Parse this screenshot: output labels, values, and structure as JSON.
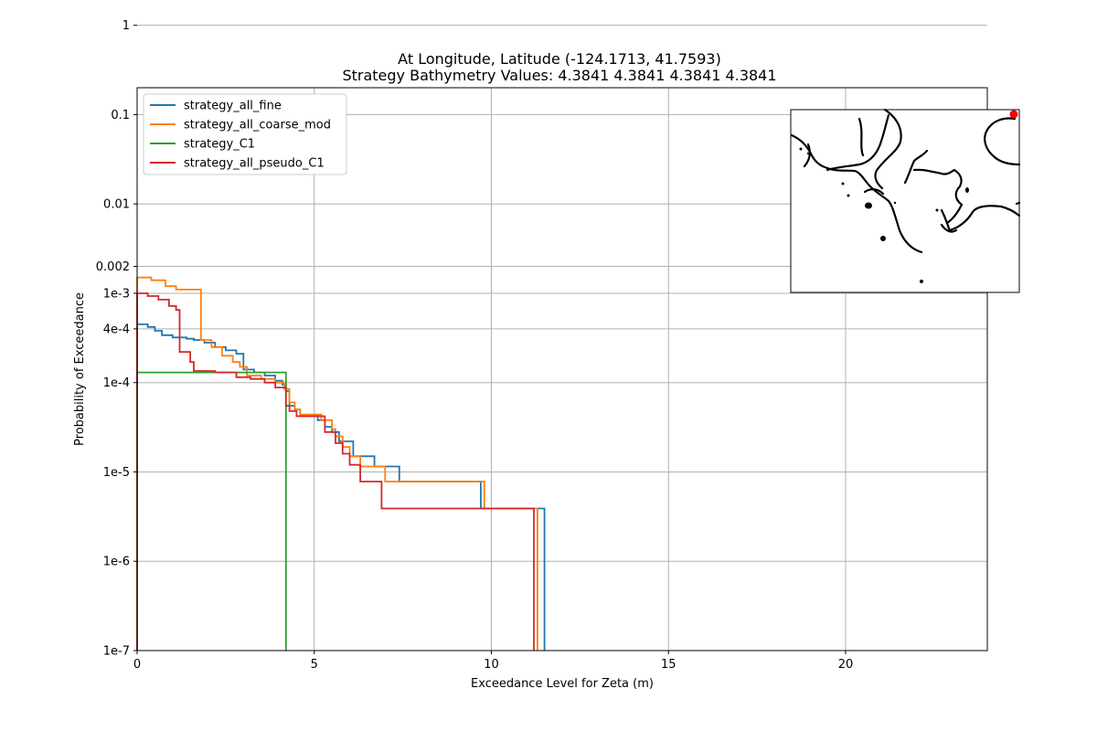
{
  "chart_data": {
    "type": "line",
    "title_lines": [
      "At Longitude, Latitude (-124.1713,  41.7593)",
      "Strategy Bathymetry Values:    4.3841    4.3841    4.3841    4.3841"
    ],
    "xlabel": "Exceedance Level for Zeta (m)",
    "ylabel": "Probability of Exceedance",
    "xlim": [
      0,
      24
    ],
    "ylim": [
      1e-07,
      0.2
    ],
    "yscale": "log",
    "grid": true,
    "legend_position": "top-left",
    "x_ticks": [
      {
        "value": 0,
        "label": "0"
      },
      {
        "value": 5,
        "label": "5"
      },
      {
        "value": 10,
        "label": "10"
      },
      {
        "value": 15,
        "label": "15"
      },
      {
        "value": 20,
        "label": "20"
      }
    ],
    "y_ticks": [
      {
        "value": 1,
        "label": "1"
      },
      {
        "value": 0.1,
        "label": "0.1"
      },
      {
        "value": 0.01,
        "label": "0.01"
      },
      {
        "value": 0.002,
        "label": "0.002"
      },
      {
        "value": 0.001,
        "label": "1e-3"
      },
      {
        "value": 0.0004,
        "label": "4e-4"
      },
      {
        "value": 0.0001,
        "label": "1e-4"
      },
      {
        "value": 1e-05,
        "label": "1e-5"
      },
      {
        "value": 1e-06,
        "label": "1e-6"
      },
      {
        "value": 1e-07,
        "label": "1e-7"
      }
    ],
    "series": [
      {
        "name": "strategy_all_fine",
        "color": "#1f77b4",
        "x": [
          0.0,
          0.3,
          0.5,
          0.7,
          1.0,
          1.4,
          1.6,
          1.9,
          2.2,
          2.5,
          2.8,
          3.0,
          3.3,
          3.6,
          3.9,
          4.1,
          4.2,
          4.3,
          4.45,
          4.6,
          5.1,
          5.3,
          5.5,
          5.7,
          6.1,
          6.7,
          7.4,
          9.7,
          11.5
        ],
        "y": [
          0.00045,
          0.00042,
          0.00038,
          0.00034,
          0.00032,
          0.00031,
          0.0003,
          0.00028,
          0.00025,
          0.00023,
          0.00021,
          0.00014,
          0.00013,
          0.00012,
          0.000105,
          9.5e-05,
          8e-05,
          5.5e-05,
          5e-05,
          4.2e-05,
          3.8e-05,
          3.2e-05,
          2.8e-05,
          2.2e-05,
          1.5e-05,
          1.15e-05,
          7.8e-06,
          3.9e-06,
          1e-07
        ]
      },
      {
        "name": "strategy_all_coarse_mod",
        "color": "#ff7f0e",
        "x": [
          0.0,
          0.4,
          0.8,
          1.1,
          1.5,
          1.8,
          2.1,
          2.4,
          2.7,
          2.9,
          3.1,
          3.5,
          3.9,
          4.15,
          4.3,
          4.45,
          4.6,
          5.2,
          5.5,
          5.6,
          5.8,
          6.0,
          6.3,
          7.0,
          9.8,
          11.3
        ],
        "y": [
          0.0015,
          0.0014,
          0.0012,
          0.0011,
          0.0011,
          0.0003,
          0.00025,
          0.0002,
          0.00017,
          0.00015,
          0.00012,
          0.00011,
          0.0001,
          8.5e-05,
          6e-05,
          5e-05,
          4.4e-05,
          3.8e-05,
          3e-05,
          2.5e-05,
          1.9e-05,
          1.5e-05,
          1.15e-05,
          7.8e-06,
          3.9e-06,
          1e-07
        ]
      },
      {
        "name": "strategy_C1",
        "color": "#2ca02c",
        "x": [
          0.0,
          4.2
        ],
        "y": [
          0.00013,
          1e-07
        ]
      },
      {
        "name": "strategy_all_pseudo_C1",
        "color": "#d62728",
        "x": [
          0.0,
          0.3,
          0.6,
          0.9,
          1.1,
          1.2,
          1.5,
          1.6,
          2.2,
          2.8,
          3.2,
          3.6,
          3.9,
          4.2,
          4.3,
          4.5,
          5.3,
          5.6,
          5.8,
          6.0,
          6.3,
          6.9,
          9.7,
          11.2
        ],
        "y": [
          0.001,
          0.00093,
          0.00085,
          0.00072,
          0.00065,
          0.00022,
          0.00017,
          0.000135,
          0.00013,
          0.000115,
          0.00011,
          0.0001,
          8.8e-05,
          5.5e-05,
          4.8e-05,
          4.2e-05,
          2.8e-05,
          2.1e-05,
          1.6e-05,
          1.2e-05,
          7.8e-06,
          3.9e-06,
          3.9e-06,
          1e-07
        ]
      }
    ]
  },
  "inset_map": {
    "marker_color": "#ff0000",
    "marker_label": "location-marker"
  }
}
